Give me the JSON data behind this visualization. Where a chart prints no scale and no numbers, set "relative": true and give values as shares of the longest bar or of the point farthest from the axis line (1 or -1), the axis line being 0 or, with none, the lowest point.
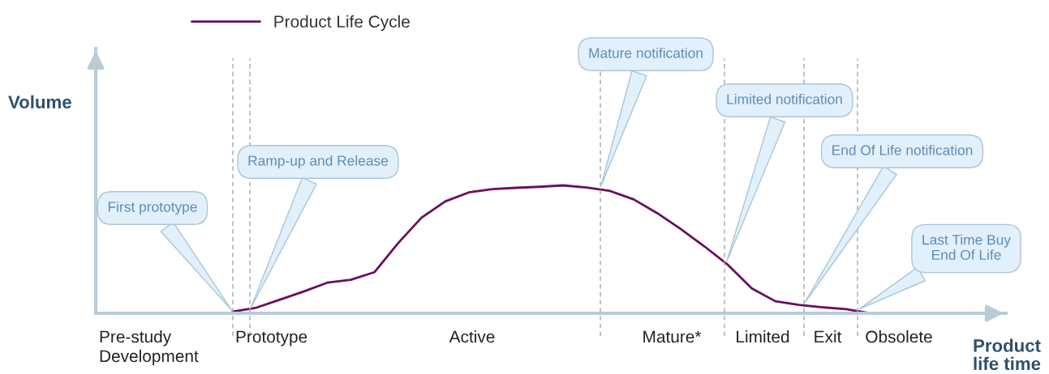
{
  "chart_data": {
    "type": "line",
    "relative": true,
    "legend": "top",
    "marker": "none",
    "line_style": "solid",
    "categories": [
      null,
      null,
      null,
      null,
      null,
      null,
      null,
      null,
      null,
      null,
      null,
      null,
      null,
      null,
      null,
      null,
      null,
      null,
      null,
      null,
      null,
      null,
      null,
      null,
      null,
      null,
      null,
      null
    ],
    "series": [
      {
        "name": "Product Life Cycle",
        "color": "#6b0f5c",
        "values": [
          0.013,
          0.044,
          0.107,
          0.17,
          0.239,
          0.262,
          0.321,
          0.547,
          0.748,
          0.874,
          0.945,
          0.971,
          0.981,
          0.989,
          1.0,
          0.983,
          0.956,
          0.89,
          0.782,
          0.657,
          0.522,
          0.377,
          0.195,
          0.094,
          0.066,
          0.047,
          0.032,
          0.0
        ]
      }
    ],
    "annotations": [
      "First prototype",
      "Ramp-up and Release",
      "Mature notification",
      "Limited notification",
      "End Of Life notification",
      "Last Time Buy\nEnd Of Life",
      "Pre-study\nDevelopment",
      "Prototype",
      "Active",
      "Mature*",
      "Limited",
      "Exit",
      "Obsolete",
      "Volume",
      "Product\nlife time"
    ]
  }
}
